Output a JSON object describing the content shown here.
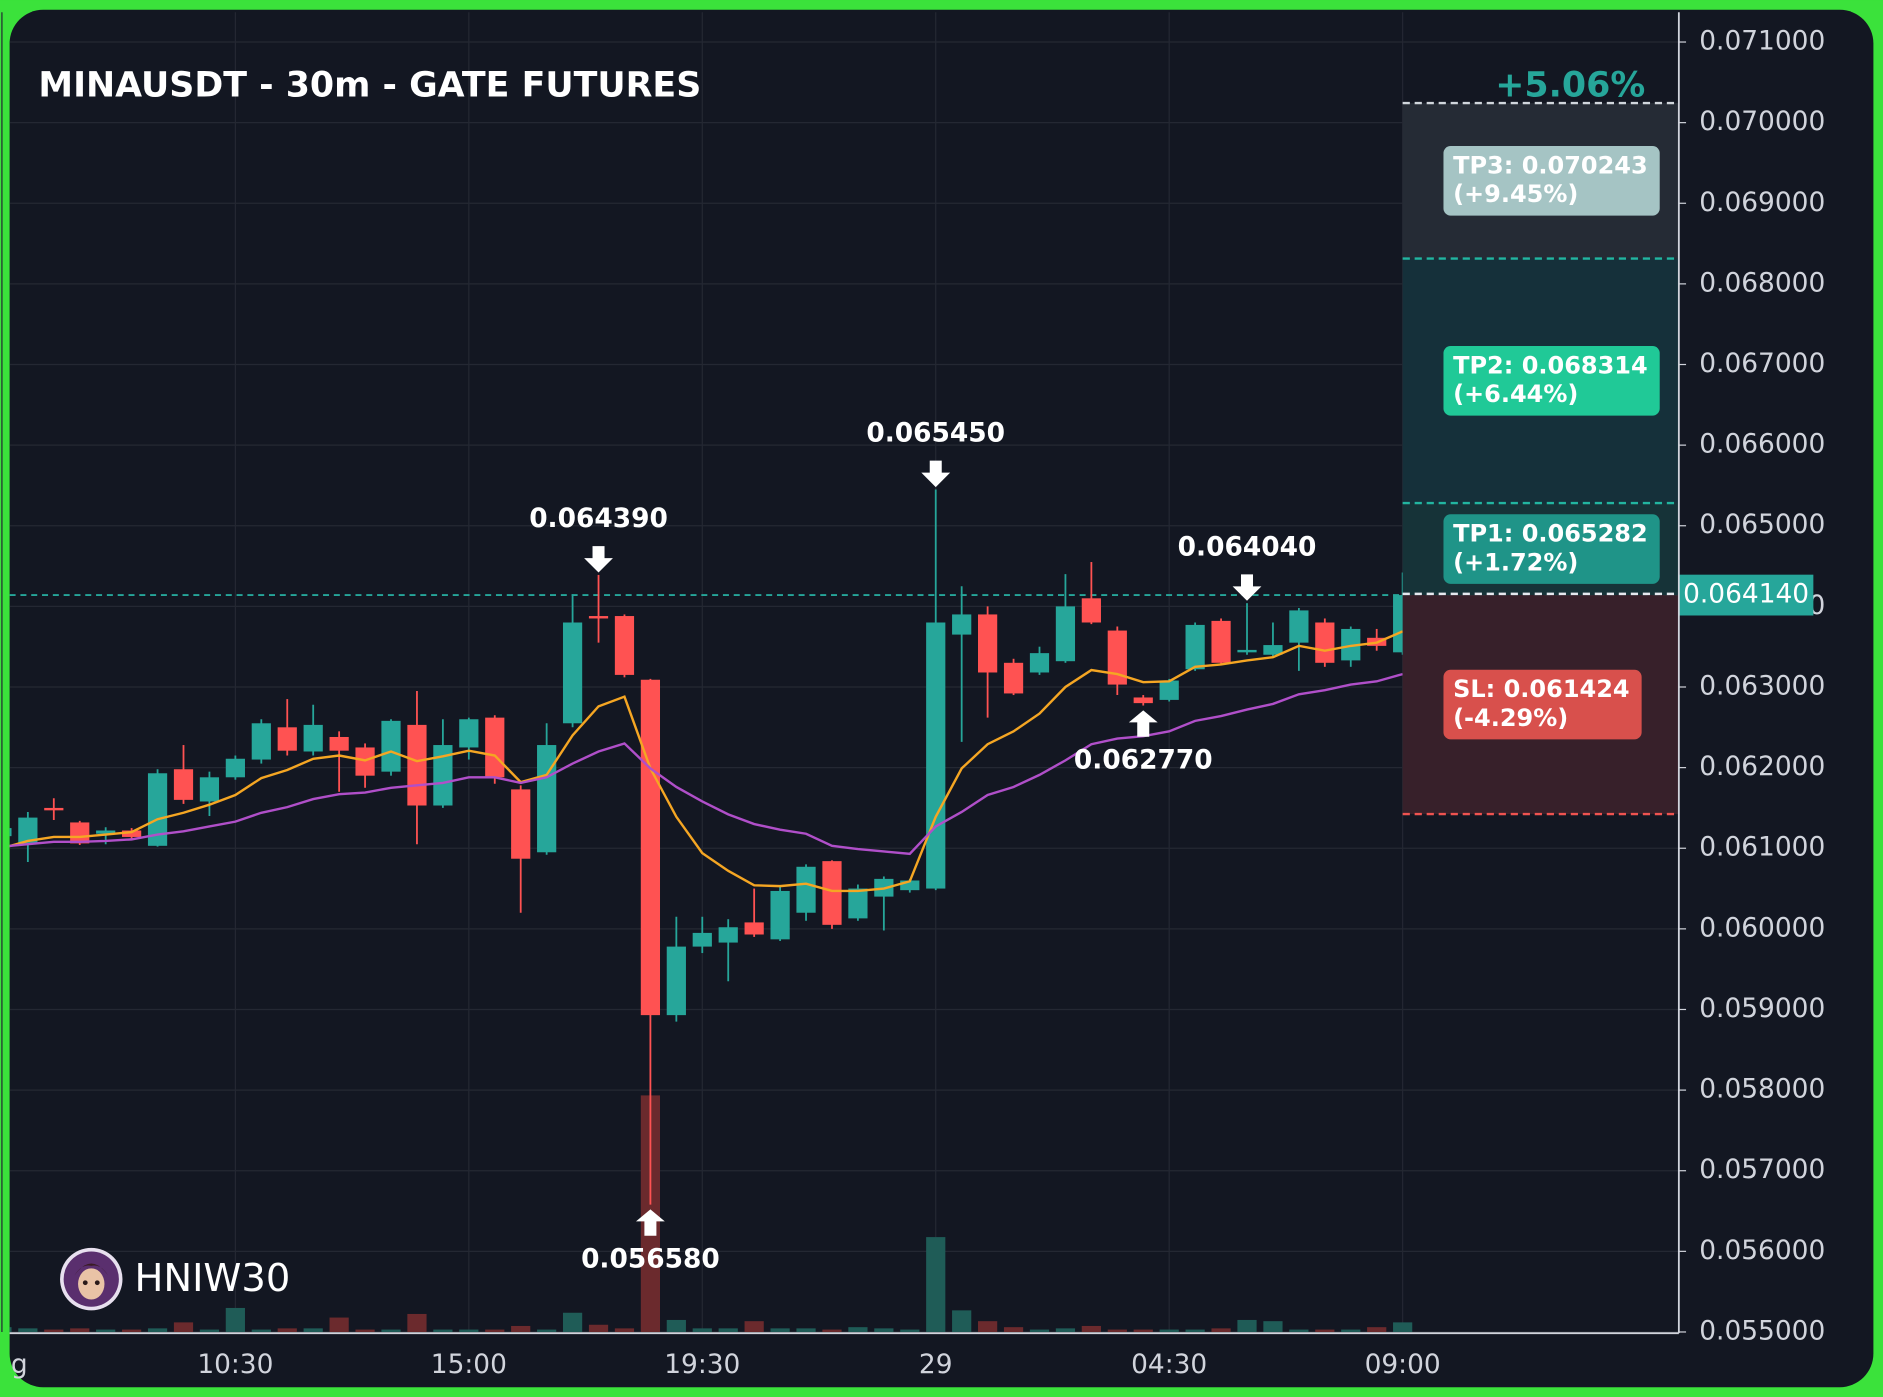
{
  "chart_data": {
    "type": "candlestick",
    "title": "MINAUSDT - 30m - GATE FUTURES",
    "change_pct": "+5.06%",
    "watermark": "HNIW30",
    "categories": [
      "g",
      null,
      null,
      null,
      null,
      null,
      null,
      null,
      null,
      "10:30",
      null,
      null,
      null,
      null,
      null,
      null,
      null,
      null,
      "15:00",
      null,
      null,
      null,
      null,
      null,
      null,
      null,
      null,
      "19:30",
      null,
      null,
      null,
      null,
      null,
      null,
      null,
      null,
      "29",
      null,
      null,
      null,
      null,
      null,
      null,
      null,
      null,
      "04:30",
      null,
      null,
      null,
      null,
      null,
      null,
      null,
      null,
      "09:00"
    ],
    "open": [
      0.06115,
      0.06105,
      0.0615,
      0.06132,
      0.06118,
      0.06122,
      0.06103,
      0.06198,
      0.06158,
      0.06188,
      0.0621,
      0.0625,
      0.0622,
      0.06238,
      0.06225,
      0.06195,
      0.06253,
      0.06153,
      0.06225,
      0.06262,
      0.06173,
      0.06095,
      0.06255,
      0.06388,
      0.06388,
      0.06309,
      0.05893,
      0.05978,
      0.05983,
      0.06008,
      0.05987,
      0.0602,
      0.06084,
      0.06013,
      0.0604,
      0.06048,
      0.0605,
      0.06365,
      0.0639,
      0.0633,
      0.06318,
      0.06332,
      0.0641,
      0.0637,
      0.06287,
      0.06284,
      0.06322,
      0.06382,
      0.06343,
      0.0634,
      0.06355,
      0.0638,
      0.06333,
      0.06361,
      0.06343
    ],
    "high": [
      0.0613,
      0.06145,
      0.06162,
      0.06134,
      0.06126,
      0.06125,
      0.06198,
      0.06228,
      0.06195,
      0.06215,
      0.0626,
      0.06285,
      0.06278,
      0.06245,
      0.0623,
      0.0626,
      0.06295,
      0.0626,
      0.06262,
      0.06265,
      0.06178,
      0.06255,
      0.06415,
      0.06439,
      0.0639,
      0.0631,
      0.06015,
      0.06015,
      0.06012,
      0.0605,
      0.06053,
      0.0608,
      0.06085,
      0.06055,
      0.06065,
      0.06062,
      0.06545,
      0.06425,
      0.064,
      0.06335,
      0.0635,
      0.0644,
      0.06455,
      0.06375,
      0.0629,
      0.0631,
      0.0638,
      0.06385,
      0.06404,
      0.0638,
      0.06398,
      0.06385,
      0.06375,
      0.06372,
      0.06442
    ],
    "low": [
      0.061,
      0.06083,
      0.06135,
      0.06104,
      0.06105,
      0.0611,
      0.06102,
      0.06155,
      0.0614,
      0.06185,
      0.06205,
      0.06215,
      0.06215,
      0.0617,
      0.06175,
      0.0619,
      0.06105,
      0.0615,
      0.0621,
      0.0618,
      0.0602,
      0.06092,
      0.0625,
      0.06355,
      0.06312,
      0.05658,
      0.05885,
      0.0597,
      0.05935,
      0.0599,
      0.05985,
      0.0601,
      0.06,
      0.0601,
      0.05998,
      0.06045,
      0.06048,
      0.06232,
      0.06262,
      0.0629,
      0.06315,
      0.0633,
      0.06378,
      0.0629,
      0.06277,
      0.06282,
      0.0632,
      0.06328,
      0.0634,
      0.06338,
      0.0632,
      0.06325,
      0.06325,
      0.06345,
      0.0634
    ],
    "close": [
      0.06125,
      0.06138,
      0.06148,
      0.06106,
      0.06122,
      0.06114,
      0.06193,
      0.0616,
      0.06188,
      0.06211,
      0.06255,
      0.06221,
      0.06253,
      0.06221,
      0.0619,
      0.06258,
      0.06153,
      0.06228,
      0.0626,
      0.06188,
      0.06087,
      0.06228,
      0.0638,
      0.06385,
      0.06315,
      0.05893,
      0.05978,
      0.05995,
      0.06002,
      0.05993,
      0.06047,
      0.06077,
      0.06005,
      0.0605,
      0.06062,
      0.0606,
      0.0638,
      0.0639,
      0.06318,
      0.06292,
      0.06342,
      0.064,
      0.0638,
      0.06303,
      0.0628,
      0.06308,
      0.06377,
      0.0633,
      0.06346,
      0.06352,
      0.06395,
      0.0633,
      0.06372,
      0.06351,
      0.06414
    ],
    "volume": [
      4,
      3,
      2,
      3,
      2,
      2,
      3,
      8,
      2,
      20,
      2,
      3,
      3,
      12,
      2,
      2,
      15,
      2,
      2,
      2,
      5,
      2,
      16,
      6,
      3,
      197,
      10,
      3,
      3,
      9,
      3,
      3,
      2,
      4,
      3,
      2,
      79,
      18,
      9,
      4,
      2,
      3,
      5,
      2,
      2,
      2,
      2,
      3,
      10,
      9,
      2,
      2,
      2,
      4,
      8
    ],
    "up_color": "#26a69a",
    "down_color": "#ff5252",
    "volume_up_color": "#1f5c57",
    "volume_down_color": "#6b2a2d",
    "ma_lines": [
      {
        "color": "#f5a623",
        "values": [
          0.061,
          0.06109,
          0.06114,
          0.06114,
          0.06117,
          0.0612,
          0.06136,
          0.06144,
          0.06154,
          0.06166,
          0.06187,
          0.06197,
          0.06211,
          0.06215,
          0.06209,
          0.0622,
          0.06208,
          0.06214,
          0.06221,
          0.06215,
          0.06182,
          0.06191,
          0.0624,
          0.06276,
          0.06288,
          0.06199,
          0.06139,
          0.06094,
          0.06072,
          0.06054,
          0.06053,
          0.06056,
          0.06047,
          0.06047,
          0.0605,
          0.06059,
          0.06139,
          0.06199,
          0.06229,
          0.06245,
          0.06267,
          0.063,
          0.06321,
          0.06316,
          0.06306,
          0.06307,
          0.06325,
          0.06328,
          0.06333,
          0.06337,
          0.06351,
          0.06345,
          0.06351,
          0.06355,
          0.06369
        ]
      },
      {
        "color": "#b04fc9",
        "values": [
          0.06102,
          0.06105,
          0.06108,
          0.06108,
          0.06109,
          0.06111,
          0.06117,
          0.06121,
          0.06127,
          0.06133,
          0.06144,
          0.06151,
          0.06161,
          0.06167,
          0.06169,
          0.06175,
          0.06178,
          0.06181,
          0.06188,
          0.06188,
          0.06181,
          0.06188,
          0.06205,
          0.0622,
          0.0623,
          0.06199,
          0.06176,
          0.06158,
          0.06142,
          0.0613,
          0.06123,
          0.06118,
          0.06103,
          0.06099,
          0.06096,
          0.06093,
          0.06127,
          0.06145,
          0.06166,
          0.06176,
          0.06191,
          0.06209,
          0.06229,
          0.06236,
          0.06239,
          0.06245,
          0.06258,
          0.06264,
          0.06272,
          0.06279,
          0.06291,
          0.06296,
          0.06303,
          0.06307,
          0.06316
        ]
      }
    ],
    "annotations": [
      {
        "type": "high",
        "value": 0.06439,
        "label": "0.064390"
      },
      {
        "type": "low",
        "value": 0.05658,
        "label": "0.056580"
      },
      {
        "type": "high",
        "value": 0.06545,
        "label": "0.065450"
      },
      {
        "type": "low",
        "value": 0.06277,
        "label": "0.062770"
      },
      {
        "type": "high",
        "value": 0.06404,
        "label": "0.064040"
      }
    ],
    "entry": {
      "value": 0.06414,
      "label": "0.064140"
    },
    "levels": [
      {
        "label": "TP3: 0.070243",
        "value": 0.070243,
        "change": "(+9.45%)",
        "color": "#a5c4c4",
        "line_color": "#d0d6dc",
        "zone_color": "#252b35"
      },
      {
        "label": "TP2: 0.068314",
        "value": 0.068314,
        "change": "(+6.44%)",
        "color": "#20c997",
        "line_color": "#22b5a0",
        "zone_color": "#15303a"
      },
      {
        "label": "TP1: 0.065282",
        "value": 0.065282,
        "change": "(+1.72%)",
        "color": "#1f9488",
        "line_color": "#22b5a0",
        "zone_color": "#163338"
      },
      {
        "label": "SL: 0.061424",
        "value": 0.061424,
        "change": "(-4.29%)",
        "color": "#d8504c",
        "line_color": "#ef5350",
        "zone_color": "#37202a"
      }
    ],
    "ylim": [
      0.055,
      0.07137
    ],
    "yticks": [
      {
        "value": 0.055,
        "label": "0.055000"
      },
      {
        "value": 0.056,
        "label": "0.056000"
      },
      {
        "value": 0.057,
        "label": "0.057000"
      },
      {
        "value": 0.058,
        "label": "0.058000"
      },
      {
        "value": 0.059,
        "label": "0.059000"
      },
      {
        "value": 0.06,
        "label": "0.060000"
      },
      {
        "value": 0.061,
        "label": "0.061000"
      },
      {
        "value": 0.062,
        "label": "0.062000"
      },
      {
        "value": 0.063,
        "label": "0.063000"
      },
      {
        "value": 0.064,
        "label": "0.064000"
      },
      {
        "value": 0.065,
        "label": "0.065000"
      },
      {
        "value": 0.066,
        "label": "0.066000"
      },
      {
        "value": 0.067,
        "label": "0.067000"
      },
      {
        "value": 0.068,
        "label": "0.068000"
      },
      {
        "value": 0.069,
        "label": "0.069000"
      },
      {
        "value": 0.07,
        "label": "0.070000"
      },
      {
        "value": 0.071,
        "label": "0.071000"
      }
    ],
    "grid": true
  }
}
